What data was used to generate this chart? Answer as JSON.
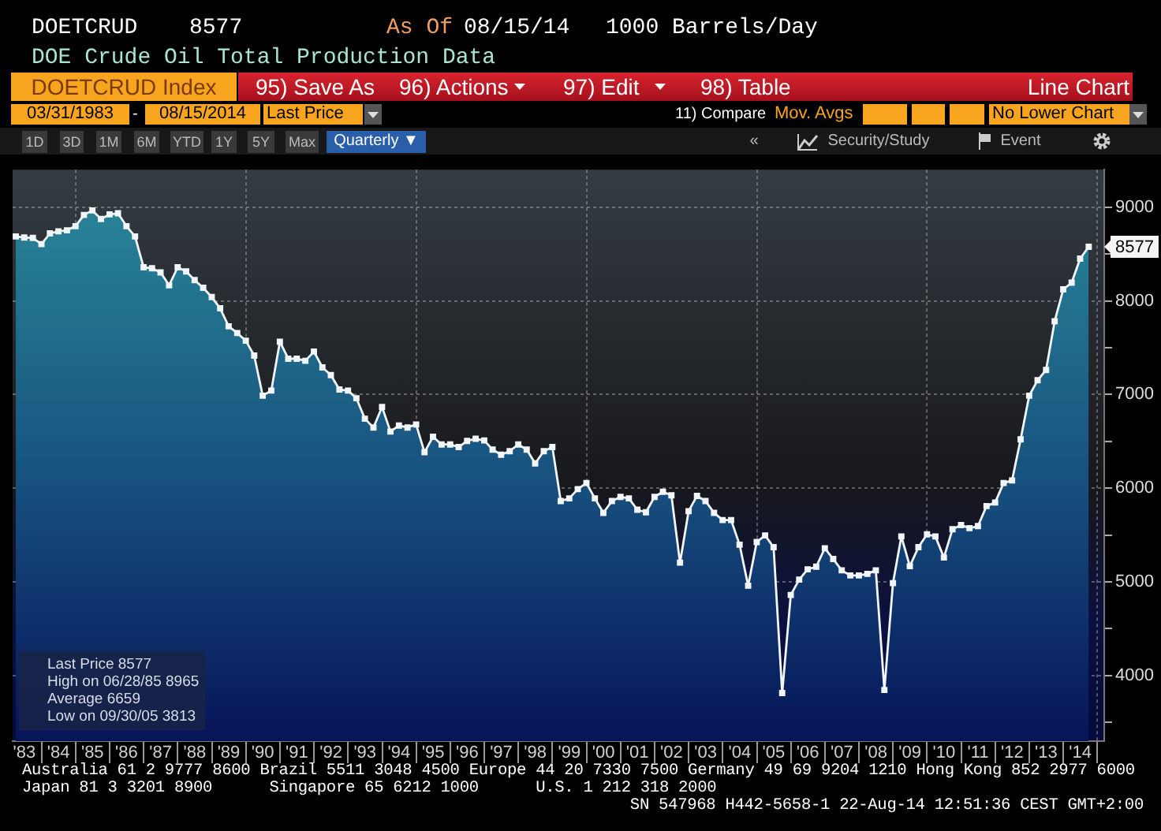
{
  "chart_data": {
    "type": "area",
    "title": "DOE Crude Oil Total Production Data",
    "annotations": [
      "DOETCRUD",
      "8577",
      "As Of",
      "08/15/14",
      "1000 Barrels/Day",
      "DOETCRUD Index",
      "95) Save As",
      "96) Actions",
      "97) Edit",
      "98) Table",
      "Line Chart",
      "03/31/1983",
      "-",
      "08/15/2014",
      "Last Price",
      "11) Compare",
      "Mov. Avgs",
      "No Lower Chart",
      "1D",
      "3D",
      "1M",
      "6M",
      "YTD",
      "1Y",
      "5Y",
      "Max",
      "Quarterly ▼",
      "«",
      "Security/Study",
      "Event",
      "Last Price 8577",
      "High on 06/28/85 8965",
      "Average 6659",
      "Low on 09/30/05 3813",
      "Australia 61 2 9777 8600 Brazil 5511 3048 4500 Europe 44 20 7330 7500 Germany 49 69 9204 1210 Hong Kong 852 2977 6000",
      "Japan 81 3 3201 8900      Singapore 65 6212 1000      U.S. 1 212 318 2000",
      "SN 547968 H442-5658-1 22-Aug-14 12:51:36 CEST GMT+2:00",
      {
        "text": "8577",
        "x": "2014-09-30",
        "y": 8577
      }
    ],
    "x": [
      "1983-03-31",
      "1983-06-30",
      "1983-09-30",
      "1983-12-31",
      "1984-03-31",
      "1984-06-30",
      "1984-09-30",
      "1984-12-31",
      "1985-03-31",
      "1985-06-30",
      "1985-09-30",
      "1985-12-31",
      "1986-03-31",
      "1986-06-30",
      "1986-09-30",
      "1986-12-31",
      "1987-03-31",
      "1987-06-30",
      "1987-09-30",
      "1987-12-31",
      "1988-03-31",
      "1988-06-30",
      "1988-09-30",
      "1988-12-31",
      "1989-03-31",
      "1989-06-30",
      "1989-09-30",
      "1989-12-31",
      "1990-03-31",
      "1990-06-30",
      "1990-09-30",
      "1990-12-31",
      "1991-03-31",
      "1991-06-30",
      "1991-09-30",
      "1991-12-31",
      "1992-03-31",
      "1992-06-30",
      "1992-09-30",
      "1992-12-31",
      "1993-03-31",
      "1993-06-30",
      "1993-09-30",
      "1993-12-31",
      "1994-03-31",
      "1994-06-30",
      "1994-09-30",
      "1994-12-31",
      "1995-03-31",
      "1995-06-30",
      "1995-09-30",
      "1995-12-31",
      "1996-03-31",
      "1996-06-30",
      "1996-09-30",
      "1996-12-31",
      "1997-03-31",
      "1997-06-30",
      "1997-09-30",
      "1997-12-31",
      "1998-03-31",
      "1998-06-30",
      "1998-09-30",
      "1998-12-31",
      "1999-03-31",
      "1999-06-30",
      "1999-09-30",
      "1999-12-31",
      "2000-03-31",
      "2000-06-30",
      "2000-09-30",
      "2000-12-31",
      "2001-03-31",
      "2001-06-30",
      "2001-09-30",
      "2001-12-31",
      "2002-03-31",
      "2002-06-30",
      "2002-09-30",
      "2002-12-31",
      "2003-03-31",
      "2003-06-30",
      "2003-09-30",
      "2003-12-31",
      "2004-03-31",
      "2004-06-30",
      "2004-09-30",
      "2004-12-31",
      "2005-03-31",
      "2005-06-30",
      "2005-09-30",
      "2005-12-31",
      "2006-03-31",
      "2006-06-30",
      "2006-09-30",
      "2006-12-31",
      "2007-03-31",
      "2007-06-30",
      "2007-09-30",
      "2007-12-31",
      "2008-03-31",
      "2008-06-30",
      "2008-09-30",
      "2008-12-31",
      "2009-03-31",
      "2009-06-30",
      "2009-09-30",
      "2009-12-31",
      "2010-03-31",
      "2010-06-30",
      "2010-09-30",
      "2010-12-31",
      "2011-03-31",
      "2011-06-30",
      "2011-09-30",
      "2011-12-31",
      "2012-03-31",
      "2012-06-30",
      "2012-09-30",
      "2012-12-31",
      "2013-03-31",
      "2013-06-30",
      "2013-09-30",
      "2013-12-31",
      "2014-03-31",
      "2014-06-30",
      "2014-09-30"
    ],
    "series": [
      {
        "color": "#2a8a9a",
        "values": [
          8687,
          8676,
          8671,
          8605,
          8720,
          8742,
          8753,
          8797,
          8917,
          8965,
          8874,
          8923,
          8934,
          8797,
          8687,
          8358,
          8347,
          8303,
          8166,
          8358,
          8314,
          8221,
          8139,
          8040,
          7920,
          7728,
          7656,
          7574,
          7415,
          6987,
          7042,
          7563,
          7382,
          7382,
          7360,
          7459,
          7289,
          7207,
          7053,
          7042,
          6960,
          6741,
          6648,
          6867,
          6604,
          6669,
          6648,
          6680,
          6384,
          6549,
          6467,
          6467,
          6439,
          6505,
          6527,
          6510,
          6412,
          6357,
          6395,
          6467,
          6412,
          6264,
          6395,
          6439,
          5863,
          5891,
          5990,
          6055,
          5891,
          5737,
          5863,
          5907,
          5891,
          5770,
          5743,
          5907,
          5962,
          5924,
          5205,
          5754,
          5918,
          5863,
          5737,
          5660,
          5660,
          5397,
          4959,
          5425,
          5496,
          5370,
          3813,
          4860,
          5024,
          5134,
          5162,
          5359,
          5244,
          5123,
          5068,
          5068,
          5085,
          5123,
          3846,
          4986,
          5485,
          5167,
          5370,
          5507,
          5485,
          5260,
          5562,
          5606,
          5573,
          5595,
          5809,
          5847,
          6055,
          6083,
          6521,
          6987,
          7152,
          7262,
          7782,
          8122,
          8194,
          8451,
          8577
        ]
      }
    ],
    "xlim": [
      "1983-02-25",
      "2015-03-15"
    ],
    "xticks": [
      {
        "value": "1983-07-01",
        "label": "'83"
      },
      {
        "value": "1984-01-01",
        "label": null
      },
      {
        "value": "1984-07-01",
        "label": "'84"
      },
      {
        "value": "1985-01-01",
        "label": null
      },
      {
        "value": "1985-07-01",
        "label": "'85"
      },
      {
        "value": "1986-01-01",
        "label": null
      },
      {
        "value": "1986-07-01",
        "label": "'86"
      },
      {
        "value": "1987-01-01",
        "label": null
      },
      {
        "value": "1987-07-01",
        "label": "'87"
      },
      {
        "value": "1988-01-01",
        "label": null
      },
      {
        "value": "1988-07-01",
        "label": "'88"
      },
      {
        "value": "1989-01-01",
        "label": null
      },
      {
        "value": "1989-07-01",
        "label": "'89"
      },
      {
        "value": "1990-01-01",
        "label": null
      },
      {
        "value": "1990-07-01",
        "label": "'90"
      },
      {
        "value": "1991-01-01",
        "label": null
      },
      {
        "value": "1991-07-01",
        "label": "'91"
      },
      {
        "value": "1992-01-01",
        "label": null
      },
      {
        "value": "1992-07-01",
        "label": "'92"
      },
      {
        "value": "1993-01-01",
        "label": null
      },
      {
        "value": "1993-07-01",
        "label": "'93"
      },
      {
        "value": "1994-01-01",
        "label": null
      },
      {
        "value": "1994-07-01",
        "label": "'94"
      },
      {
        "value": "1995-01-01",
        "label": null
      },
      {
        "value": "1995-07-01",
        "label": "'95"
      },
      {
        "value": "1996-01-01",
        "label": null
      },
      {
        "value": "1996-07-01",
        "label": "'96"
      },
      {
        "value": "1997-01-01",
        "label": null
      },
      {
        "value": "1997-07-01",
        "label": "'97"
      },
      {
        "value": "1998-01-01",
        "label": null
      },
      {
        "value": "1998-07-01",
        "label": "'98"
      },
      {
        "value": "1999-01-01",
        "label": null
      },
      {
        "value": "1999-07-01",
        "label": "'99"
      },
      {
        "value": "2000-01-01",
        "label": null
      },
      {
        "value": "2000-07-01",
        "label": "'00"
      },
      {
        "value": "2001-01-01",
        "label": null
      },
      {
        "value": "2001-07-01",
        "label": "'01"
      },
      {
        "value": "2002-01-01",
        "label": null
      },
      {
        "value": "2002-07-01",
        "label": "'02"
      },
      {
        "value": "2003-01-01",
        "label": null
      },
      {
        "value": "2003-07-01",
        "label": "'03"
      },
      {
        "value": "2004-01-01",
        "label": null
      },
      {
        "value": "2004-07-01",
        "label": "'04"
      },
      {
        "value": "2005-01-01",
        "label": null
      },
      {
        "value": "2005-07-01",
        "label": "'05"
      },
      {
        "value": "2006-01-01",
        "label": null
      },
      {
        "value": "2006-07-01",
        "label": "'06"
      },
      {
        "value": "2007-01-01",
        "label": null
      },
      {
        "value": "2007-07-01",
        "label": "'07"
      },
      {
        "value": "2008-01-01",
        "label": null
      },
      {
        "value": "2008-07-01",
        "label": "'08"
      },
      {
        "value": "2009-01-01",
        "label": null
      },
      {
        "value": "2009-07-01",
        "label": "'09"
      },
      {
        "value": "2010-01-01",
        "label": null
      },
      {
        "value": "2010-07-01",
        "label": "'10"
      },
      {
        "value": "2011-01-01",
        "label": null
      },
      {
        "value": "2011-07-01",
        "label": "'11"
      },
      {
        "value": "2012-01-01",
        "label": null
      },
      {
        "value": "2012-07-01",
        "label": "'12"
      },
      {
        "value": "2013-01-01",
        "label": null
      },
      {
        "value": "2013-07-01",
        "label": "'13"
      },
      {
        "value": "2014-01-01",
        "label": null
      },
      {
        "value": "2014-07-01",
        "label": "'14"
      },
      {
        "value": "2015-01-01",
        "label": null
      }
    ],
    "ylim": [
      3300,
      9400
    ],
    "yticks": [
      {
        "value": 3500,
        "label": null
      },
      4000,
      {
        "value": 4500,
        "label": null
      },
      5000,
      {
        "value": 5500,
        "label": null
      },
      6000,
      {
        "value": 6500,
        "label": null
      },
      7000,
      {
        "value": 7500,
        "label": null
      },
      8000,
      {
        "value": 8500,
        "label": null
      },
      9000
    ],
    "grid": true,
    "marker": "square"
  }
}
